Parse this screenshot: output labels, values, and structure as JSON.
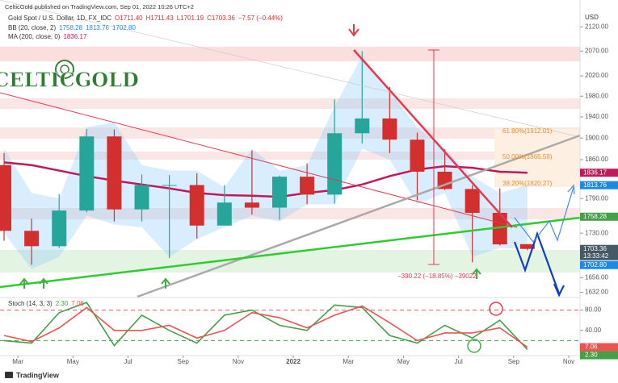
{
  "header": {
    "published": "CelticGold published on TradingView.com, Sep 01, 2022 10:26 UTC+2",
    "logo": "CELTICGOLD",
    "footer": "TradingView"
  },
  "chart_data": [
    {
      "type": "candlestick",
      "title": "Gold Spot / U.S. Dollar, 1D, FX_IDC",
      "quote": [
        "O1711.40",
        "H1711.43",
        "L1701.19",
        "C1703.36",
        "−7.57 (−0.44%)"
      ],
      "indicators": [
        {
          "label": "BB (20, close, 2)",
          "readout": [
            "1758.28",
            "1813.76",
            "1702.80"
          ]
        },
        {
          "label": "MA (200, close, 0)",
          "readout": [
            "1836.17"
          ]
        }
      ],
      "y_axis_label": "USD",
      "log_scale": true,
      "x": [
        "2021-02",
        "2021-03",
        "2021-04",
        "2021-05",
        "2021-06",
        "2021-07",
        "2021-08",
        "2021-09",
        "2021-10",
        "2021-11",
        "2021-12",
        "2022-01",
        "2022-02",
        "2022-03",
        "2022-04",
        "2022-05",
        "2022-06",
        "2022-07",
        "2022-08",
        "2022-09"
      ],
      "open": [
        1850,
        1734,
        1708,
        1769,
        1903,
        1771,
        1814,
        1814,
        1743,
        1783,
        1774,
        1829,
        1797,
        1909,
        1937,
        1897,
        1838,
        1807,
        1765,
        1711.4
      ],
      "high": [
        1872,
        1755,
        1798,
        1917,
        1916,
        1833,
        1832,
        1835,
        1814,
        1877,
        1831,
        1853,
        1974,
        2070,
        1998,
        1910,
        1879,
        1814,
        1808,
        1711.43
      ],
      "low": [
        1717,
        1677,
        1705,
        1766,
        1750,
        1750,
        1688,
        1721,
        1746,
        1762,
        1753,
        1780,
        1781,
        1890,
        1872,
        1787,
        1805,
        1681,
        1709,
        1701.19
      ],
      "close": [
        1734,
        1708,
        1769,
        1903,
        1771,
        1814,
        1814,
        1743,
        1783,
        1774,
        1829,
        1797,
        1909,
        1937,
        1897,
        1838,
        1807,
        1765,
        1711,
        1703.36
      ],
      "up_color": "#26a69a",
      "down_color": "#d32f2f",
      "ma": {
        "color": "#c2185b",
        "values": [
          1855,
          1850,
          1840,
          1830,
          1822,
          1815,
          1808,
          1800,
          1796,
          1795,
          1793,
          1800,
          1805,
          1815,
          1830,
          1842,
          1848,
          1845,
          1838,
          1836.17
        ]
      },
      "bb": {
        "color": "#90caf9",
        "upper": [
          1880,
          1800,
          1790,
          1920,
          1930,
          1850,
          1840,
          1840,
          1810,
          1880,
          1840,
          1850,
          1960,
          2060,
          1990,
          1920,
          1880,
          1830,
          1800,
          1813.76
        ],
        "lower": [
          1730,
          1670,
          1690,
          1760,
          1745,
          1740,
          1690,
          1720,
          1740,
          1760,
          1750,
          1780,
          1780,
          1880,
          1860,
          1780,
          1800,
          1690,
          1705,
          1702.8
        ]
      },
      "ylim": [
        1625,
        2163
      ],
      "yticks": [
        {
          "value": 2120,
          "label": "2120.00"
        },
        {
          "value": 2070,
          "label": "2070.00"
        },
        {
          "value": 2020,
          "label": "2020.00"
        },
        {
          "value": 1980,
          "label": "1980.00"
        },
        {
          "value": 1940,
          "label": "1940.00"
        },
        {
          "value": 1900,
          "label": "1900.00"
        },
        {
          "value": 1860,
          "label": "1860.00"
        },
        {
          "value": 1790,
          "label": "1790.00"
        },
        {
          "value": 1730,
          "label": "1730.00"
        },
        {
          "value": 1656,
          "label": "1656.00"
        },
        {
          "value": 1632,
          "label": "1632.00"
        }
      ],
      "xlim": [
        "2021-02",
        "2022-11"
      ],
      "xticks": [
        {
          "value": "2021-03",
          "label": "Mar"
        },
        {
          "value": "2021-05",
          "label": "May"
        },
        {
          "value": "2021-07",
          "label": "Jul"
        },
        {
          "value": "2021-09",
          "label": "Sep"
        },
        {
          "value": "2021-11",
          "label": "Nov"
        },
        {
          "value": "2022-01",
          "label": "2022"
        },
        {
          "value": "2022-03",
          "label": "Mar"
        },
        {
          "value": "2022-05",
          "label": "May"
        },
        {
          "value": "2022-07",
          "label": "Jul"
        },
        {
          "value": "2022-09",
          "label": "Sep"
        },
        {
          "value": "2022-11",
          "label": "Nov"
        }
      ],
      "price_tags": [
        {
          "value": 1836.17,
          "color": "#c2185b"
        },
        {
          "value": 1813.76,
          "color": "#1e88e5"
        },
        {
          "value": 1758.28,
          "color": "#43a047"
        },
        {
          "value": 1703.36,
          "color": "#455a64",
          "countdown": "13:33:42"
        },
        {
          "value": 1702.8,
          "label": "1702.80",
          "color": "#1e88e5"
        }
      ],
      "annotations": [
        "61.80%(1912.01)",
        "50.00%(1865.58)",
        "38.20%(1820.27)",
        "−390.22 (−18.85%) −39022"
      ]
    },
    {
      "type": "stochastic",
      "title": "Stoch (14, 3, 3)",
      "readout": [
        "2.30",
        "7.06"
      ],
      "series": [
        {
          "color": "#43a047",
          "values": [
            20,
            15,
            75,
            95,
            10,
            70,
            40,
            15,
            70,
            80,
            50,
            40,
            90,
            85,
            30,
            15,
            50,
            25,
            60,
            2.3
          ]
        },
        {
          "color": "#ef5350",
          "values": [
            30,
            18,
            45,
            85,
            40,
            40,
            50,
            25,
            40,
            75,
            65,
            45,
            70,
            88,
            55,
            20,
            35,
            35,
            45,
            7.06
          ]
        }
      ],
      "ylim": [
        0,
        100
      ],
      "yticks": [
        {
          "value": 80,
          "label": "80.00"
        },
        {
          "value": 40,
          "label": "40.00"
        }
      ],
      "levels": [
        {
          "value": 80,
          "color": "#ef5350"
        },
        {
          "value": 20,
          "color": "#43a047"
        }
      ]
    }
  ]
}
